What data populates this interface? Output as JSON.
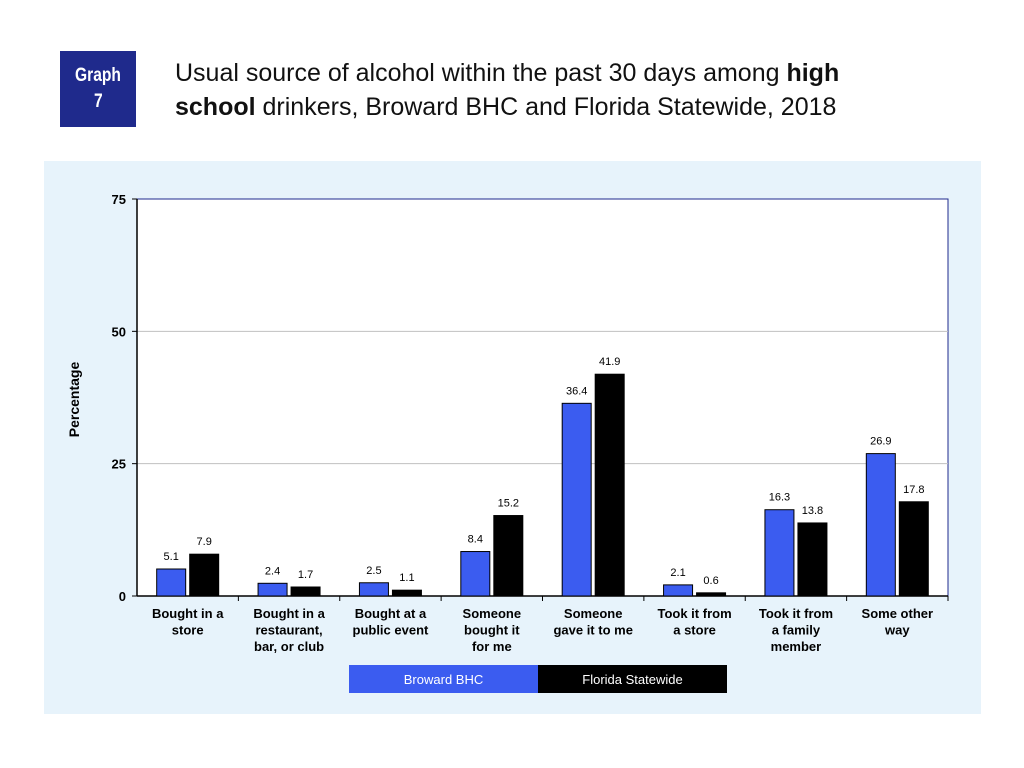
{
  "badge": {
    "line1": "Graph",
    "line2": "7"
  },
  "title": {
    "part1": "Usual source of alcohol within the past 30 days among ",
    "bold1": "high",
    "bold2": "school",
    "part2": " drinkers, Broward BHC and Florida Statewide, 2018"
  },
  "colors": {
    "panel_bg": "#e7f3fb",
    "series1": "#3b5cf0",
    "series2": "#000000",
    "grid": "#c0c0c0",
    "axis": "#1f2a8c"
  },
  "chart_data": {
    "type": "bar",
    "title": "Usual source of alcohol within the past 30 days among high school drinkers, Broward BHC and Florida Statewide, 2018",
    "xlabel": "",
    "ylabel": "Percentage",
    "ylim": [
      0,
      75
    ],
    "yticks": [
      0,
      25,
      50,
      75
    ],
    "grid": true,
    "legend_position": "bottom",
    "categories": [
      [
        "Bought in a",
        "store"
      ],
      [
        "Bought in a",
        "restaurant,",
        "bar, or club"
      ],
      [
        "Bought at a",
        "public event"
      ],
      [
        "Someone",
        "bought it",
        "for me"
      ],
      [
        "Someone",
        "gave it to me"
      ],
      [
        "Took it from",
        "a store"
      ],
      [
        "Took it from",
        "a family",
        "member"
      ],
      [
        "Some other",
        "way"
      ]
    ],
    "series": [
      {
        "name": "Broward BHC",
        "color": "#3b5cf0",
        "values": [
          5.1,
          2.4,
          2.5,
          8.4,
          36.4,
          2.1,
          16.3,
          26.9
        ]
      },
      {
        "name": "Florida Statewide",
        "color": "#000000",
        "values": [
          7.9,
          1.7,
          1.1,
          15.2,
          41.9,
          0.6,
          13.8,
          17.8
        ]
      }
    ]
  }
}
